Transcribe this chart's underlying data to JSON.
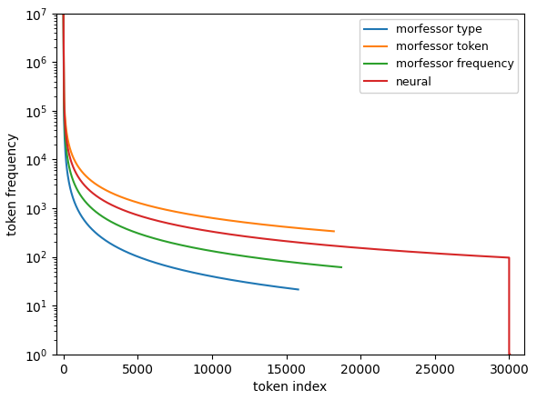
{
  "xlabel": "token index",
  "ylabel": "token frequency",
  "xlim": [
    -500,
    31000
  ],
  "ylim_log": [
    1.0,
    10000000.0
  ],
  "legend_labels": [
    "morfessor type",
    "morfessor token",
    "morfessor frequency",
    "neural"
  ],
  "colors": [
    "#1f77b4",
    "#ff7f0e",
    "#2ca02c",
    "#d62728"
  ],
  "linewidth": 1.5,
  "curves": {
    "morfessor_type": {
      "x_end": 15800,
      "alpha": 1.35,
      "y_scale": 10000000.0
    },
    "morfessor_token": {
      "x_end": 18200,
      "alpha": 1.05,
      "y_scale": 10000000.0
    },
    "morfessor_frequency": {
      "x_end": 18700,
      "alpha": 1.22,
      "y_scale": 10000000.0
    },
    "neural": {
      "x_main_end": 30000,
      "alpha": 1.12,
      "y_scale": 10000000.0,
      "drop_x": 30050,
      "drop_y_end": 1.0
    }
  }
}
